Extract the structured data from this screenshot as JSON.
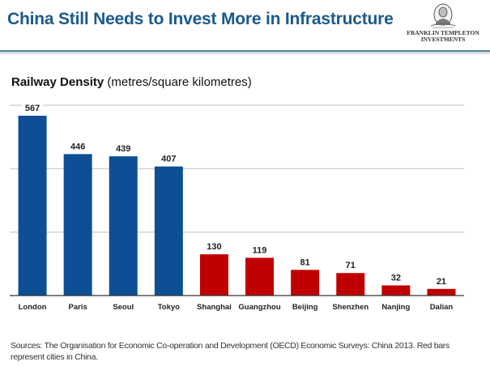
{
  "header": {
    "title": "China Still Needs to Invest More in Infrastructure",
    "logo": {
      "icon": "franklin-portrait-icon",
      "line1": "FRANKLIN TEMPLETON",
      "line2": "INVESTMENTS"
    }
  },
  "chart_heading": {
    "bold": "Railway  Density",
    "normal": " (metres/square kilometres)"
  },
  "colors": {
    "title": "#1a5a8c",
    "non_china_bar": "#0d4f95",
    "china_bar": "#c00000",
    "gridline": "#c8c8c8",
    "axis": "#333333"
  },
  "chart_data": {
    "type": "bar",
    "title": "Railway Density (metres/square kilometres)",
    "xlabel": "",
    "ylabel": "",
    "ylim": [
      0,
      600
    ],
    "grid": true,
    "gridlines": [
      200,
      400,
      600
    ],
    "y_tick_labels_shown": false,
    "categories": [
      "London",
      "Paris",
      "Seoul",
      "Tokyo",
      "Shanghai",
      "Guangzhou",
      "Beijing",
      "Shenzhen",
      "Nanjing",
      "Dalian"
    ],
    "values": [
      567,
      446,
      439,
      407,
      130,
      119,
      81,
      71,
      32,
      21
    ],
    "data_labels": [
      "567",
      "446",
      "439",
      "407",
      "130",
      "119",
      "81",
      "71",
      "32",
      "21"
    ],
    "is_china": [
      false,
      false,
      false,
      false,
      true,
      true,
      true,
      true,
      true,
      true
    ],
    "legend": "none"
  },
  "footer": {
    "sources": "Sources: The Organisation for Economic Co-operation and Development (OECD) Economic Surveys: China 2013. Red bars represent cities in China."
  }
}
